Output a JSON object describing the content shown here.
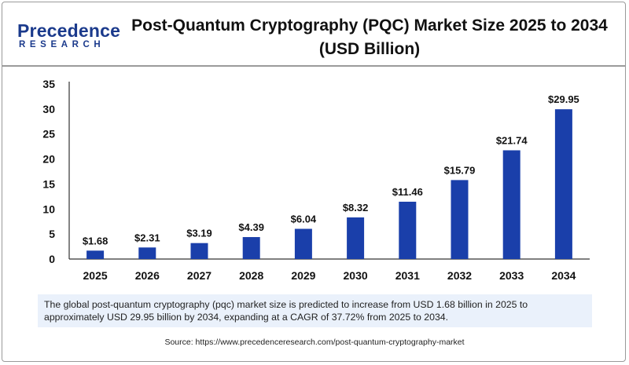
{
  "logo": {
    "main": "Precedence",
    "sub": "RESEARCH"
  },
  "title_line1": "Post-Quantum Cryptography (PQC) Market Size 2025 to 2034",
  "title_line2": "(USD Billion)",
  "summary": "The global post-quantum cryptography (pqc) market size is predicted to increase from USD 1.68 billion in 2025 to approximately USD 29.95 billion by 2034, expanding at a CAGR of 37.72% from 2025 to 2034.",
  "source": "Source: https://www.precedenceresearch.com/post-quantum-cryptography-market",
  "colors": {
    "bar": "#1a3faa",
    "brand": "#1b3a8c"
  },
  "chart_data": {
    "type": "bar",
    "title": "Post-Quantum Cryptography (PQC) Market Size 2025 to 2034 (USD Billion)",
    "categories": [
      "2025",
      "2026",
      "2027",
      "2028",
      "2029",
      "2030",
      "2031",
      "2032",
      "2033",
      "2034"
    ],
    "values": [
      1.68,
      2.31,
      3.19,
      4.39,
      6.04,
      8.32,
      11.46,
      15.79,
      21.74,
      29.95
    ],
    "value_labels": [
      "$1.68",
      "$2.31",
      "$3.19",
      "$4.39",
      "$6.04",
      "$8.32",
      "$11.46",
      "$15.79",
      "$21.74",
      "$29.95"
    ],
    "yticks": [
      0,
      5,
      10,
      15,
      20,
      25,
      30,
      35
    ],
    "ylim": [
      0,
      35
    ],
    "xlabel": "",
    "ylabel": "",
    "grid": false,
    "legend": "none"
  }
}
